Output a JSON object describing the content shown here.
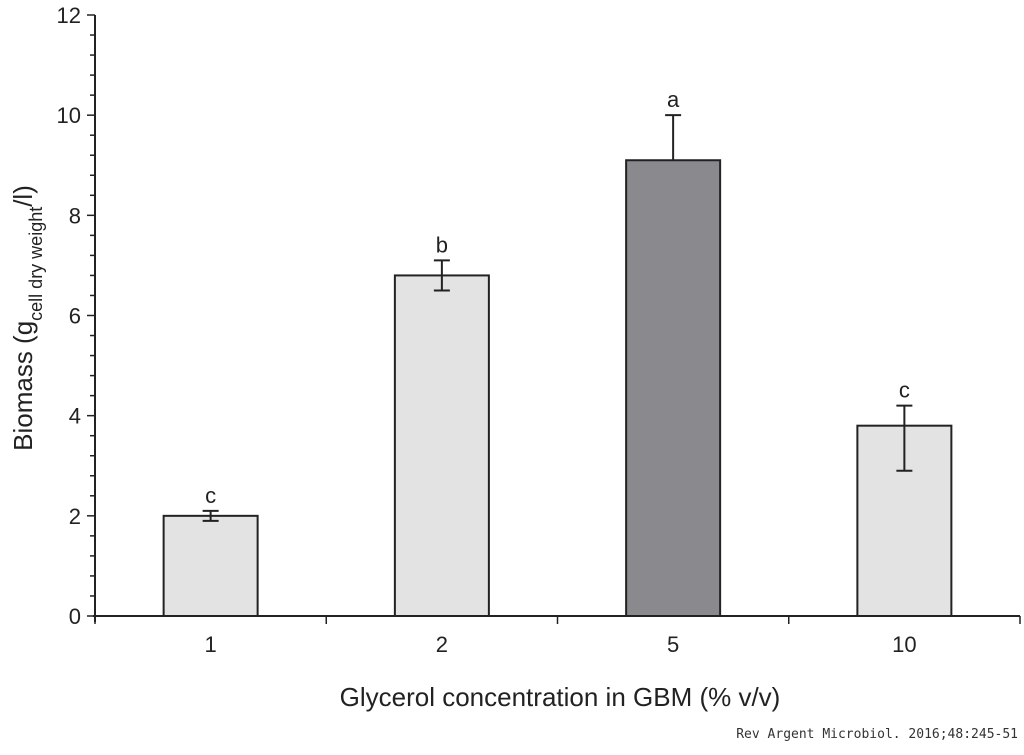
{
  "chart_data": {
    "type": "bar",
    "xlabel": "Glycerol concentration in GBM (% v/v)",
    "ylabel": {
      "main": "Biomass (g",
      "subscript": "cell dry weight",
      "suffix": "/l)"
    },
    "categories": [
      "1",
      "2",
      "5",
      "10"
    ],
    "values": [
      2.0,
      6.8,
      9.1,
      3.8
    ],
    "error_low": [
      1.9,
      6.5,
      null,
      2.9
    ],
    "error_high": [
      2.1,
      7.1,
      10.0,
      4.2
    ],
    "significance_labels": [
      "c",
      "b",
      "a",
      "c"
    ],
    "bar_colors": [
      "#e3e3e3",
      "#e3e3e3",
      "#8a8a8e",
      "#e3e3e3"
    ],
    "ylim": [
      0,
      12
    ],
    "yticks": [
      0,
      2,
      4,
      6,
      8,
      10,
      12
    ],
    "grid": false,
    "legend": "none"
  },
  "source": "Rev Argent Microbiol. 2016;48:245-51"
}
